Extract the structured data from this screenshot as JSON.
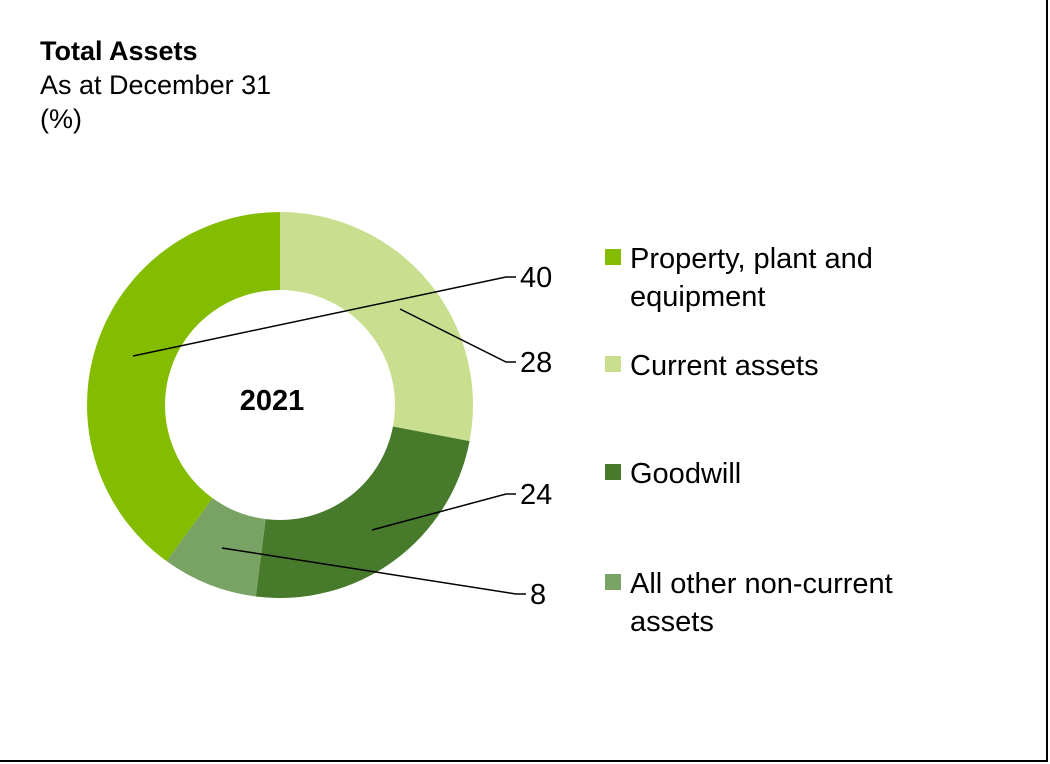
{
  "chart_data": {
    "type": "pie",
    "title": "Total Assets",
    "subtitle": "As at December 31",
    "unit_label": "(%)",
    "center_label": "2021",
    "categories": [
      "Property, plant and equipment",
      "Current assets",
      "Goodwill",
      "All other non-current assets"
    ],
    "values": [
      40,
      28,
      24,
      8
    ],
    "colors": [
      "#84bd00",
      "#c9df8f",
      "#477a2a",
      "#78a364"
    ],
    "legend_position": "right"
  }
}
